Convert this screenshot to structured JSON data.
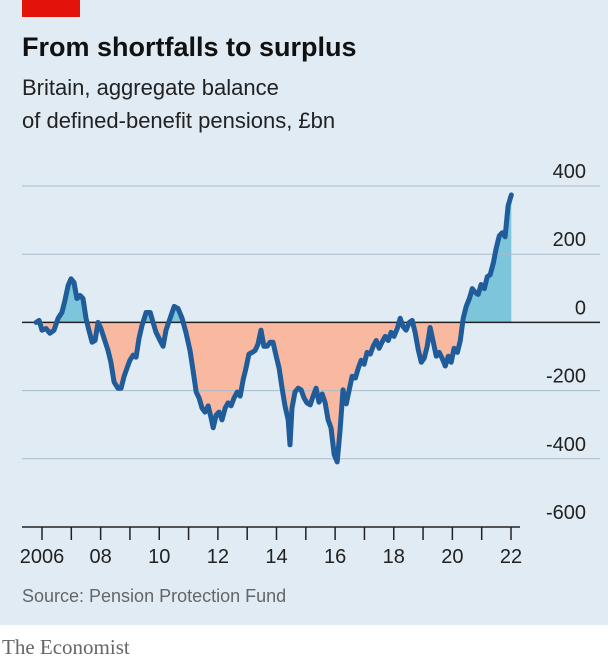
{
  "chart_data": {
    "type": "line",
    "title": "From shortfalls to surplus",
    "subtitle": [
      "Britain, aggregate balance",
      "of defined-benefit pensions, £bn"
    ],
    "source": "Source: Pension Protection Fund",
    "brand": "The Economist",
    "x": [
      2005.8,
      2005.9,
      2006.0,
      2006.14,
      2006.27,
      2006.41,
      2006.55,
      2006.68,
      2006.78,
      2006.89,
      2006.99,
      2007.09,
      2007.19,
      2007.3,
      2007.4,
      2007.5,
      2007.6,
      2007.71,
      2007.81,
      2007.91,
      2008.01,
      2008.12,
      2008.25,
      2008.35,
      2008.46,
      2008.59,
      2008.7,
      2008.8,
      2008.9,
      2009.0,
      2009.11,
      2009.21,
      2009.31,
      2009.41,
      2009.55,
      2009.69,
      2009.79,
      2009.89,
      2010.03,
      2010.13,
      2010.23,
      2010.37,
      2010.51,
      2010.64,
      2010.78,
      2010.91,
      2011.05,
      2011.15,
      2011.26,
      2011.36,
      2011.46,
      2011.56,
      2011.67,
      2011.77,
      2011.84,
      2011.94,
      2012.04,
      2012.14,
      2012.25,
      2012.35,
      2012.45,
      2012.55,
      2012.66,
      2012.76,
      2012.86,
      2012.96,
      2013.06,
      2013.17,
      2013.27,
      2013.37,
      2013.47,
      2013.57,
      2013.68,
      2013.78,
      2013.88,
      2013.99,
      2014.09,
      2014.19,
      2014.29,
      2014.4,
      2014.46,
      2014.53,
      2014.63,
      2014.74,
      2014.84,
      2014.94,
      2015.04,
      2015.15,
      2015.25,
      2015.35,
      2015.45,
      2015.56,
      2015.66,
      2015.76,
      2015.86,
      2015.97,
      2016.07,
      2016.17,
      2016.27,
      2016.38,
      2016.48,
      2016.58,
      2016.69,
      2016.79,
      2016.89,
      2016.99,
      2017.09,
      2017.2,
      2017.3,
      2017.4,
      2017.5,
      2017.6,
      2017.71,
      2017.81,
      2017.91,
      2018.01,
      2018.12,
      2018.22,
      2018.32,
      2018.42,
      2018.53,
      2018.63,
      2018.73,
      2018.84,
      2018.94,
      2019.04,
      2019.14,
      2019.24,
      2019.35,
      2019.45,
      2019.55,
      2019.65,
      2019.76,
      2019.86,
      2019.96,
      2020.06,
      2020.17,
      2020.27,
      2020.37,
      2020.47,
      2020.58,
      2020.68,
      2020.78,
      2020.88,
      2020.98,
      2021.09,
      2021.19,
      2021.29,
      2021.4,
      2021.49,
      2021.6,
      2021.7,
      2021.8,
      2021.9,
      2022.01
    ],
    "series": [
      {
        "color": "#1f5c99",
        "values": [
          0,
          6,
          -23,
          -18,
          -32,
          -23,
          12,
          29,
          64,
          108,
          128,
          117,
          70,
          79,
          70,
          12,
          -23,
          -58,
          -53,
          0,
          -18,
          -47,
          -82,
          -117,
          -175,
          -193,
          -193,
          -158,
          -134,
          -111,
          -96,
          -102,
          -47,
          -9,
          29,
          29,
          0,
          -29,
          -53,
          -70,
          -23,
          12,
          47,
          41,
          12,
          -29,
          -82,
          -140,
          -204,
          -222,
          -251,
          -263,
          -245,
          -280,
          -309,
          -272,
          -263,
          -286,
          -251,
          -236,
          -245,
          -222,
          -204,
          -216,
          -169,
          -134,
          -93,
          -88,
          -82,
          -64,
          -23,
          -70,
          -70,
          -58,
          -58,
          -99,
          -134,
          -193,
          -245,
          -286,
          -359,
          -251,
          -204,
          -193,
          -198,
          -222,
          -236,
          -242,
          -216,
          -193,
          -234,
          -210,
          -236,
          -286,
          -309,
          -388,
          -409,
          -315,
          -198,
          -239,
          -198,
          -158,
          -163,
          -134,
          -111,
          -123,
          -88,
          -93,
          -70,
          -53,
          -76,
          -58,
          -41,
          -53,
          -29,
          -41,
          -18,
          12,
          -12,
          -23,
          0,
          6,
          -29,
          -82,
          -117,
          -105,
          -70,
          -15,
          -58,
          -99,
          -88,
          -105,
          -128,
          -99,
          -117,
          -76,
          -88,
          -53,
          12,
          47,
          70,
          99,
          88,
          82,
          111,
          99,
          134,
          140,
          175,
          216,
          254,
          263,
          251,
          342,
          374
        ]
      }
    ],
    "fill_colors": {
      "positive": "#7cc5da",
      "negative": "#f9b8a0"
    },
    "ylim": [
      -600,
      400
    ],
    "yticks": [
      -600,
      -400,
      -200,
      0,
      200,
      400
    ],
    "xlim": [
      2005.5,
      2022.3
    ],
    "xticks": [
      2006,
      {
        "value": 2008,
        "label": "08"
      },
      {
        "value": 2010,
        "label": "10"
      },
      {
        "value": 2012,
        "label": "12"
      },
      {
        "value": 2014,
        "label": "14"
      },
      {
        "value": 2016,
        "label": "16"
      },
      {
        "value": 2018,
        "label": "18"
      },
      {
        "value": 2020,
        "label": "20"
      },
      {
        "value": 2022,
        "label": "22"
      }
    ],
    "xminorticks": [
      2007,
      2009,
      2011,
      2013,
      2015,
      2017,
      2019,
      2021
    ],
    "grid": true
  }
}
